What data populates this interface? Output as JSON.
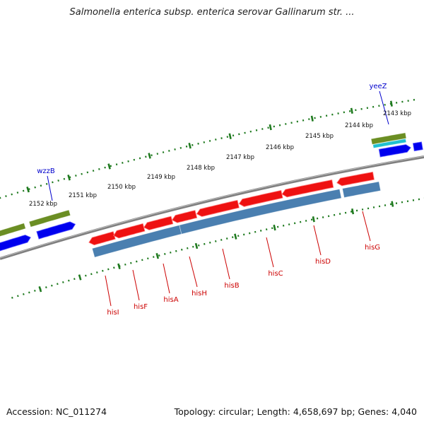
{
  "header": {
    "title": "Salmonella enterica subsp. enterica serovar Gallinarum str. ..."
  },
  "footer": {
    "accession": "Accession: NC_011274",
    "summary": "Topology: circular; Length: 4,658,697 bp; Genes: 4,040"
  },
  "colors": {
    "backbone": "#7f7f7f",
    "tick": "#1f7a1f",
    "forward_gene": "#0000ee",
    "forward_gene_top": "#6b8e23",
    "forward_gene_mid": "#20c0d0",
    "reverse_gene": "#ee1111",
    "reverse_gene_band": "#4a7fb0",
    "forward_label": "#0000cc",
    "reverse_label": "#cc0000"
  },
  "scale_labels": [
    "2143 kbp",
    "2144 kbp",
    "2145 kbp",
    "2146 kbp",
    "2147 kbp",
    "2148 kbp",
    "2149 kbp",
    "2150 kbp",
    "2151 kbp",
    "2152 kbp"
  ],
  "forward_gene_labels": [
    "yeeZ",
    "wzzB"
  ],
  "reverse_gene_labels": [
    "hisI",
    "hisF",
    "hisA",
    "hisH",
    "hisB",
    "hisC",
    "hisD",
    "hisG"
  ]
}
